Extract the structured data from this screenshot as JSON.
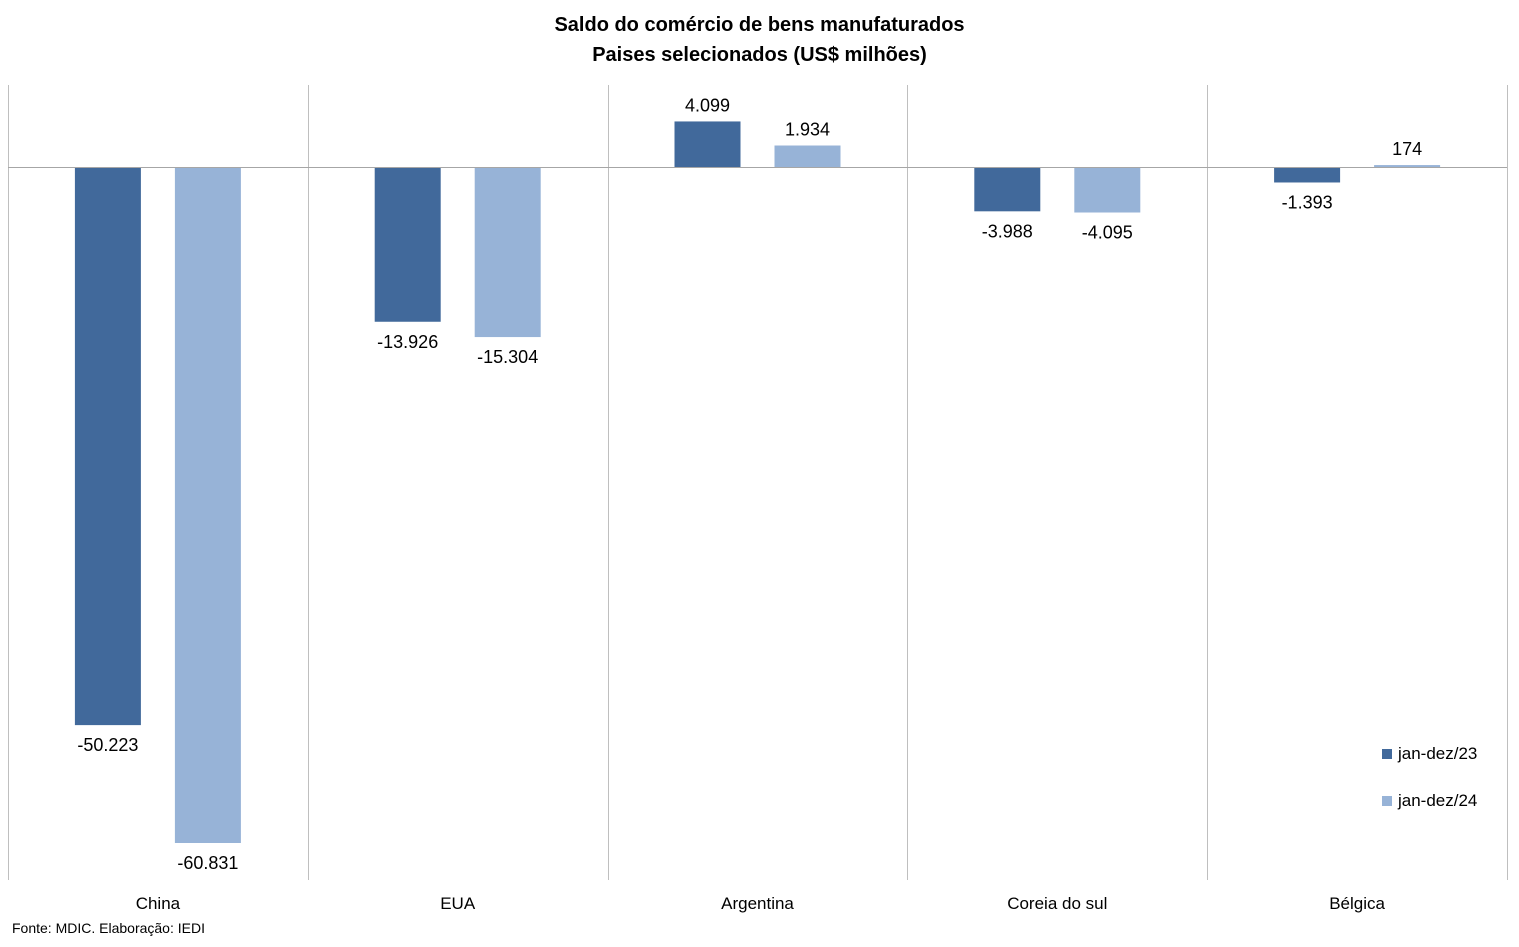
{
  "colors": {
    "series_1": "#41699b",
    "series_2": "#97b3d7",
    "gridline": "#bfbfbf",
    "axis_line": "#a6a6a6",
    "text": "#000000"
  },
  "source": "Fonte: MDIC. Elaboração: IEDI",
  "chart_data": {
    "type": "bar",
    "title": "Saldo do comércio de bens manufaturados",
    "subtitle": "Paises selecionados (US$ milhões)",
    "categories": [
      "China",
      "EUA",
      "Argentina",
      "Coreia do sul",
      "Bélgica"
    ],
    "series": [
      {
        "name": "jan-dez/23",
        "values": [
          -50223,
          -13926,
          4099,
          -3988,
          -1393
        ],
        "labels": [
          "-50.223",
          "-13.926",
          "4.099",
          "-3.988",
          "-1.393"
        ]
      },
      {
        "name": "jan-dez/24",
        "values": [
          -60831,
          -15304,
          1934,
          -4095,
          174
        ],
        "labels": [
          "-60.831",
          "-15.304",
          "1.934",
          "-4.095",
          "174"
        ]
      }
    ],
    "ylim": [
      -64000,
      7000
    ],
    "grid": "vertical category separators",
    "legend_position": "bottom-right",
    "xlabel": "",
    "ylabel": ""
  }
}
